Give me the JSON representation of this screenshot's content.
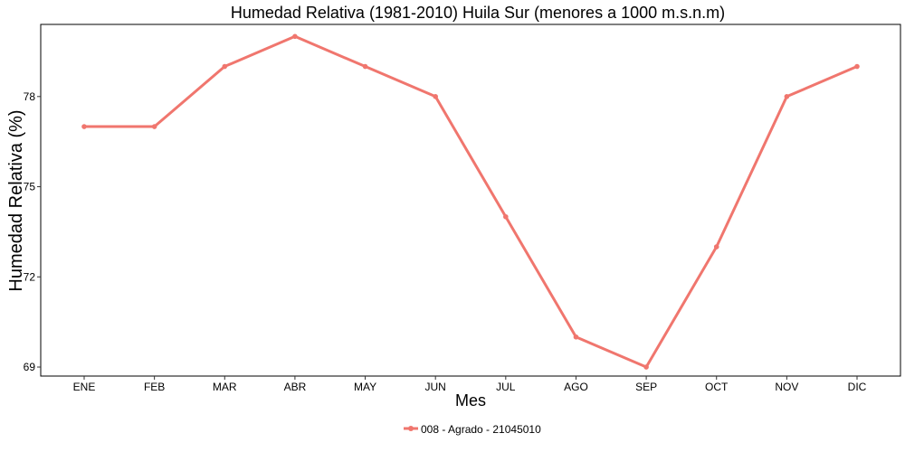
{
  "chart_data": {
    "type": "line",
    "title": "Humedad Relativa (1981-2010) Huila Sur (menores a 1000 m.s.n.m)",
    "xlabel": "Mes",
    "ylabel": "Humedad Relativa (%)",
    "categories": [
      "ENE",
      "FEB",
      "MAR",
      "ABR",
      "MAY",
      "JUN",
      "JUL",
      "AGO",
      "SEP",
      "OCT",
      "NOV",
      "DIC"
    ],
    "yticks": [
      69,
      72,
      75,
      78
    ],
    "ylim": [
      68.7,
      80.4
    ],
    "grid": false,
    "legend_position": "bottom",
    "series": [
      {
        "name": "008 - Agrado - 21045010",
        "color": "#F0766E",
        "values": [
          77,
          77,
          79,
          80,
          79,
          78,
          74,
          70,
          69,
          73,
          78,
          79
        ]
      }
    ]
  }
}
